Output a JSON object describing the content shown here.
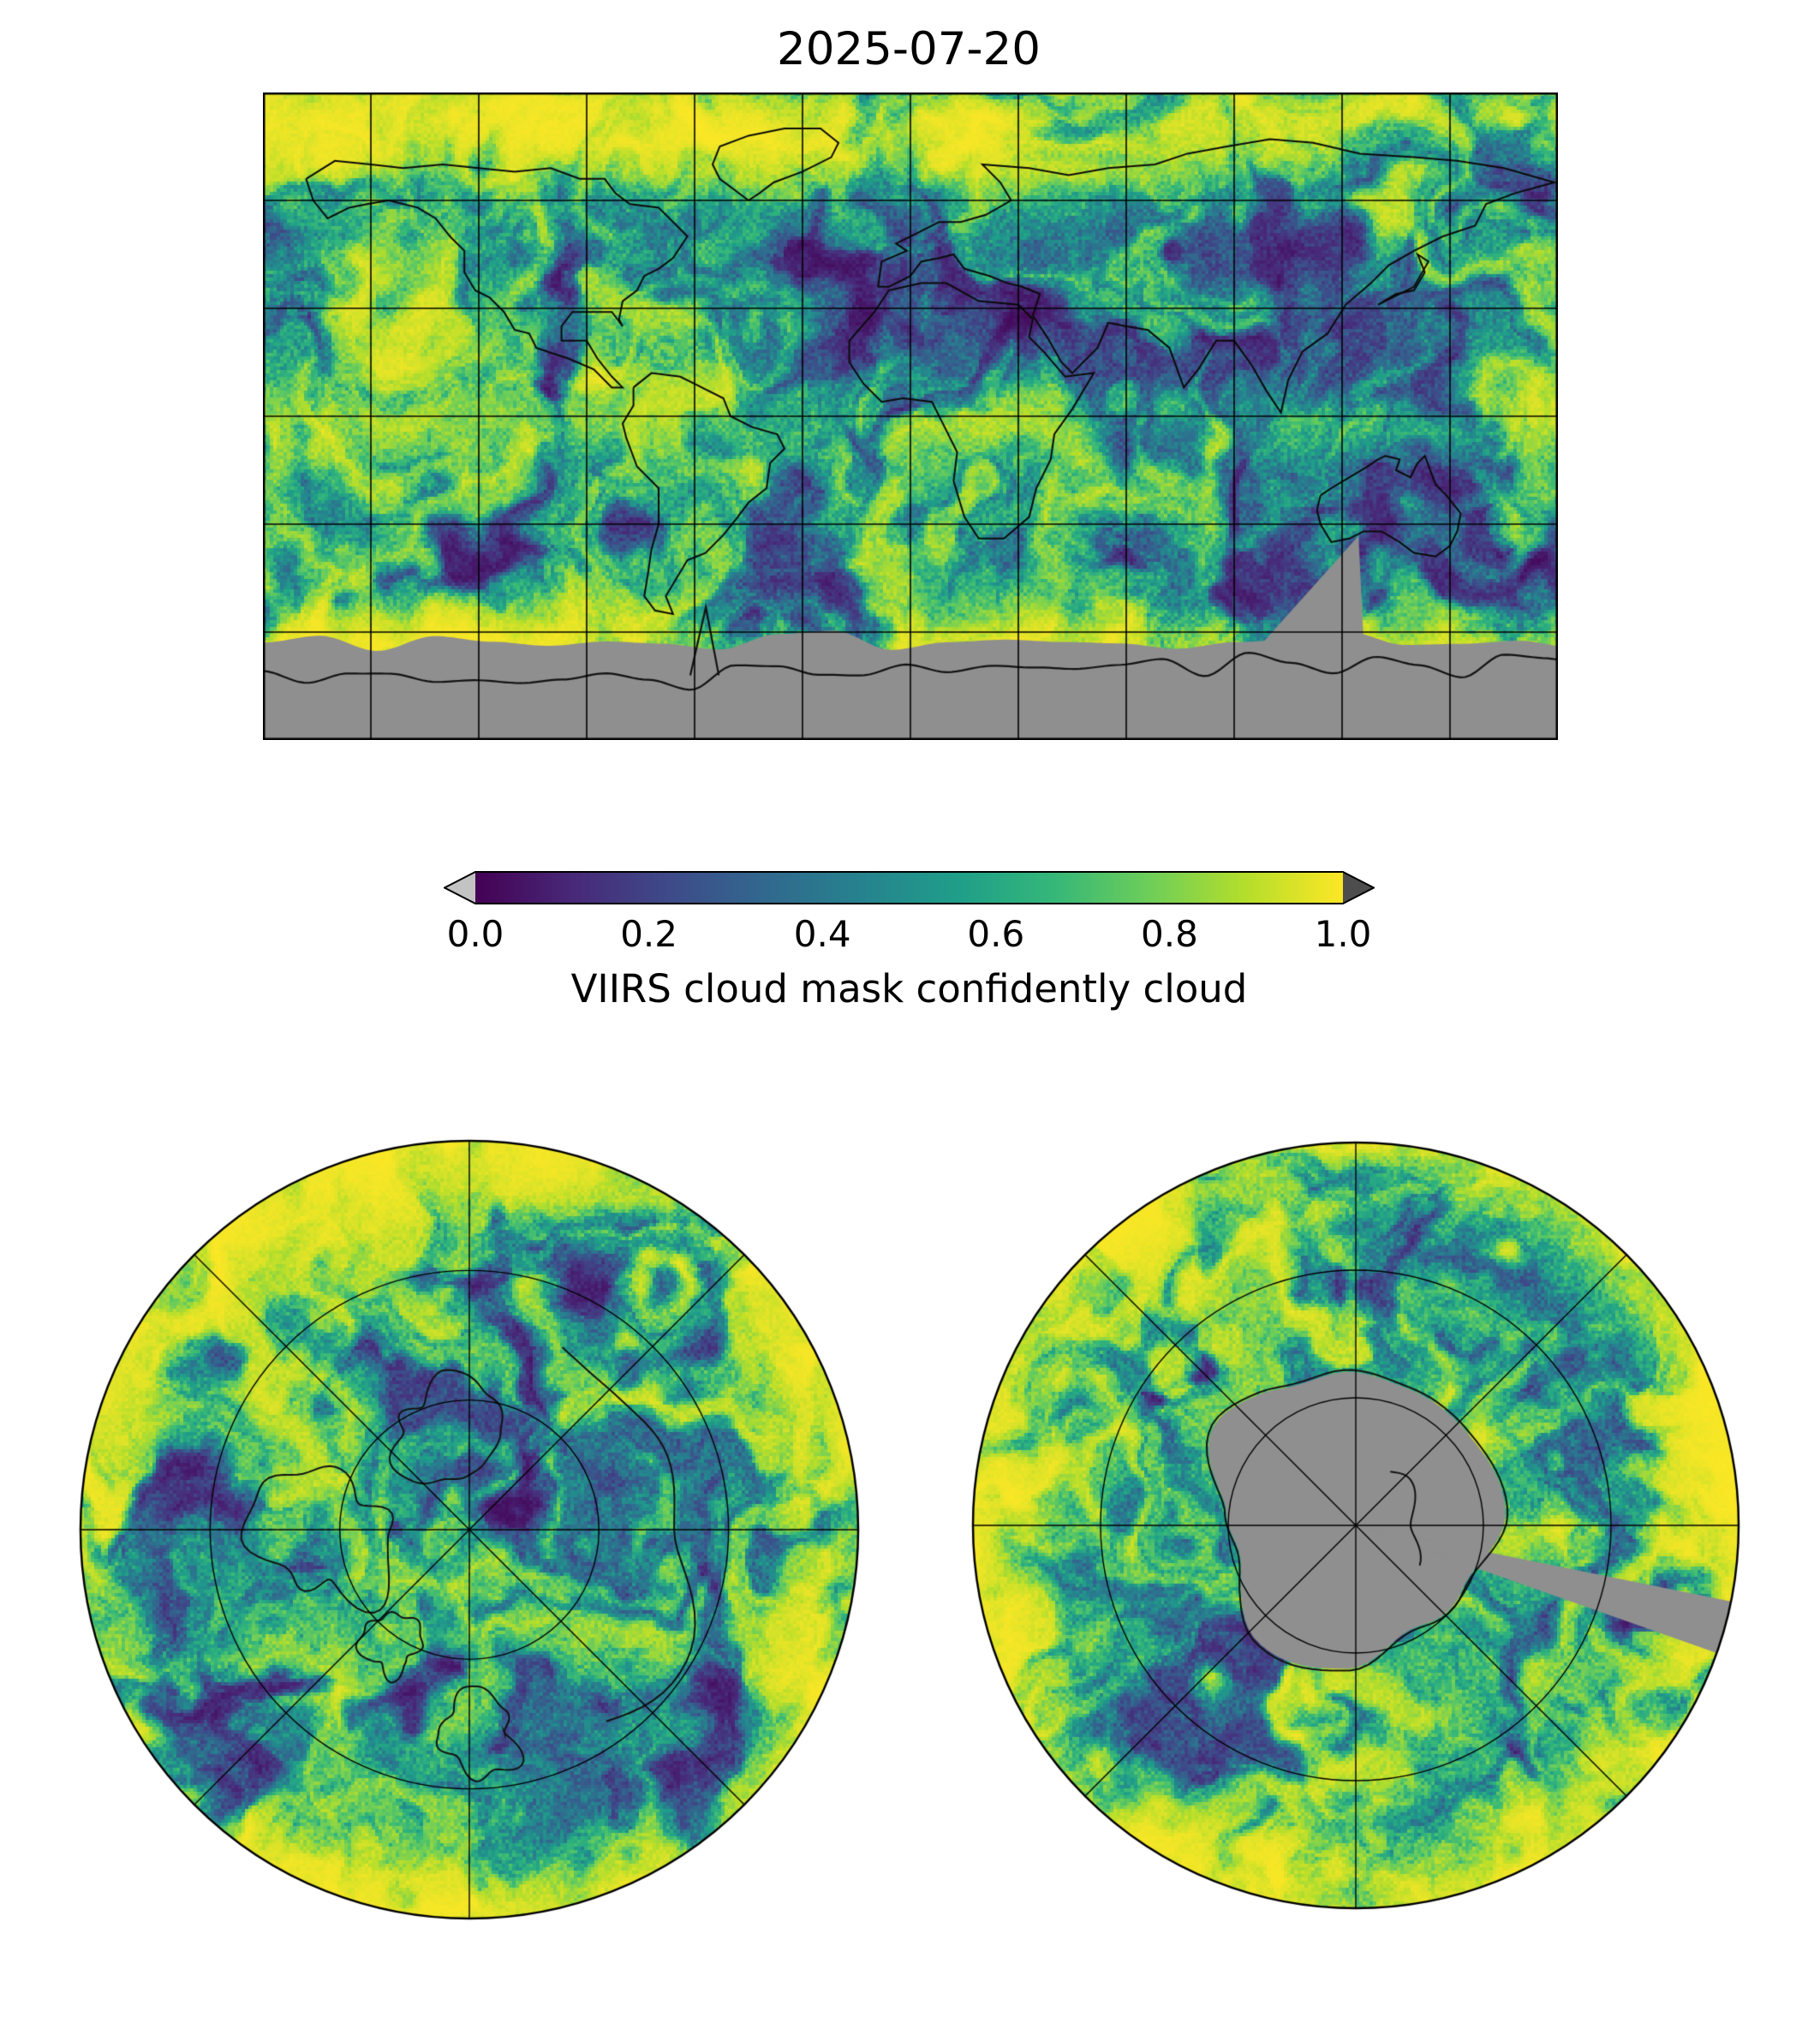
{
  "figure": {
    "title": "2025-07-20",
    "colorbar": {
      "label": "VIIRS cloud mask confidently cloud",
      "ticks": [
        "0.0",
        "0.2",
        "0.4",
        "0.6",
        "0.8",
        "1.0"
      ],
      "min": 0.0,
      "max": 1.0,
      "colormap": "viridis",
      "under_color": "#c3c3c3",
      "over_color": "#4d4d4d",
      "nodata_color": "#8f8f8f",
      "stops": [
        "#440154",
        "#482878",
        "#3e4a89",
        "#31688e",
        "#26828e",
        "#1f9e89",
        "#35b779",
        "#6ece58",
        "#b5de2b",
        "#fde725"
      ]
    }
  },
  "chart_data": {
    "type": "heatmap",
    "title": "2025-07-20",
    "colormap": "viridis",
    "value_label": "VIIRS cloud mask confidently cloud",
    "value_range": [
      0.0,
      1.0
    ],
    "colorbar_ticks": [
      0.0,
      0.2,
      0.4,
      0.6,
      0.8,
      1.0
    ],
    "colorbar_extend": "both",
    "panels": [
      {
        "name": "global",
        "projection": "equirectangular",
        "gridline_spacing_deg": 30,
        "coastlines": true,
        "nodata_regions": "gray band over Antarctica and high southern latitudes"
      },
      {
        "name": "north-polar",
        "projection": "polar stereographic (North Pole)",
        "gridlines": "latitude circles and meridians every 45 degrees",
        "coastlines": true
      },
      {
        "name": "south-polar",
        "projection": "polar stereographic (South Pole)",
        "gridlines": "latitude circles and meridians every 45 degrees",
        "coastlines": true,
        "nodata_regions": "gray area over Antarctica plus a gray wedge toward the lower-right limb"
      }
    ],
    "note": "raster cloud-mask field: 0 = confidently clear (dark purple), 1 = confidently cloud (yellow); gray = no data"
  }
}
